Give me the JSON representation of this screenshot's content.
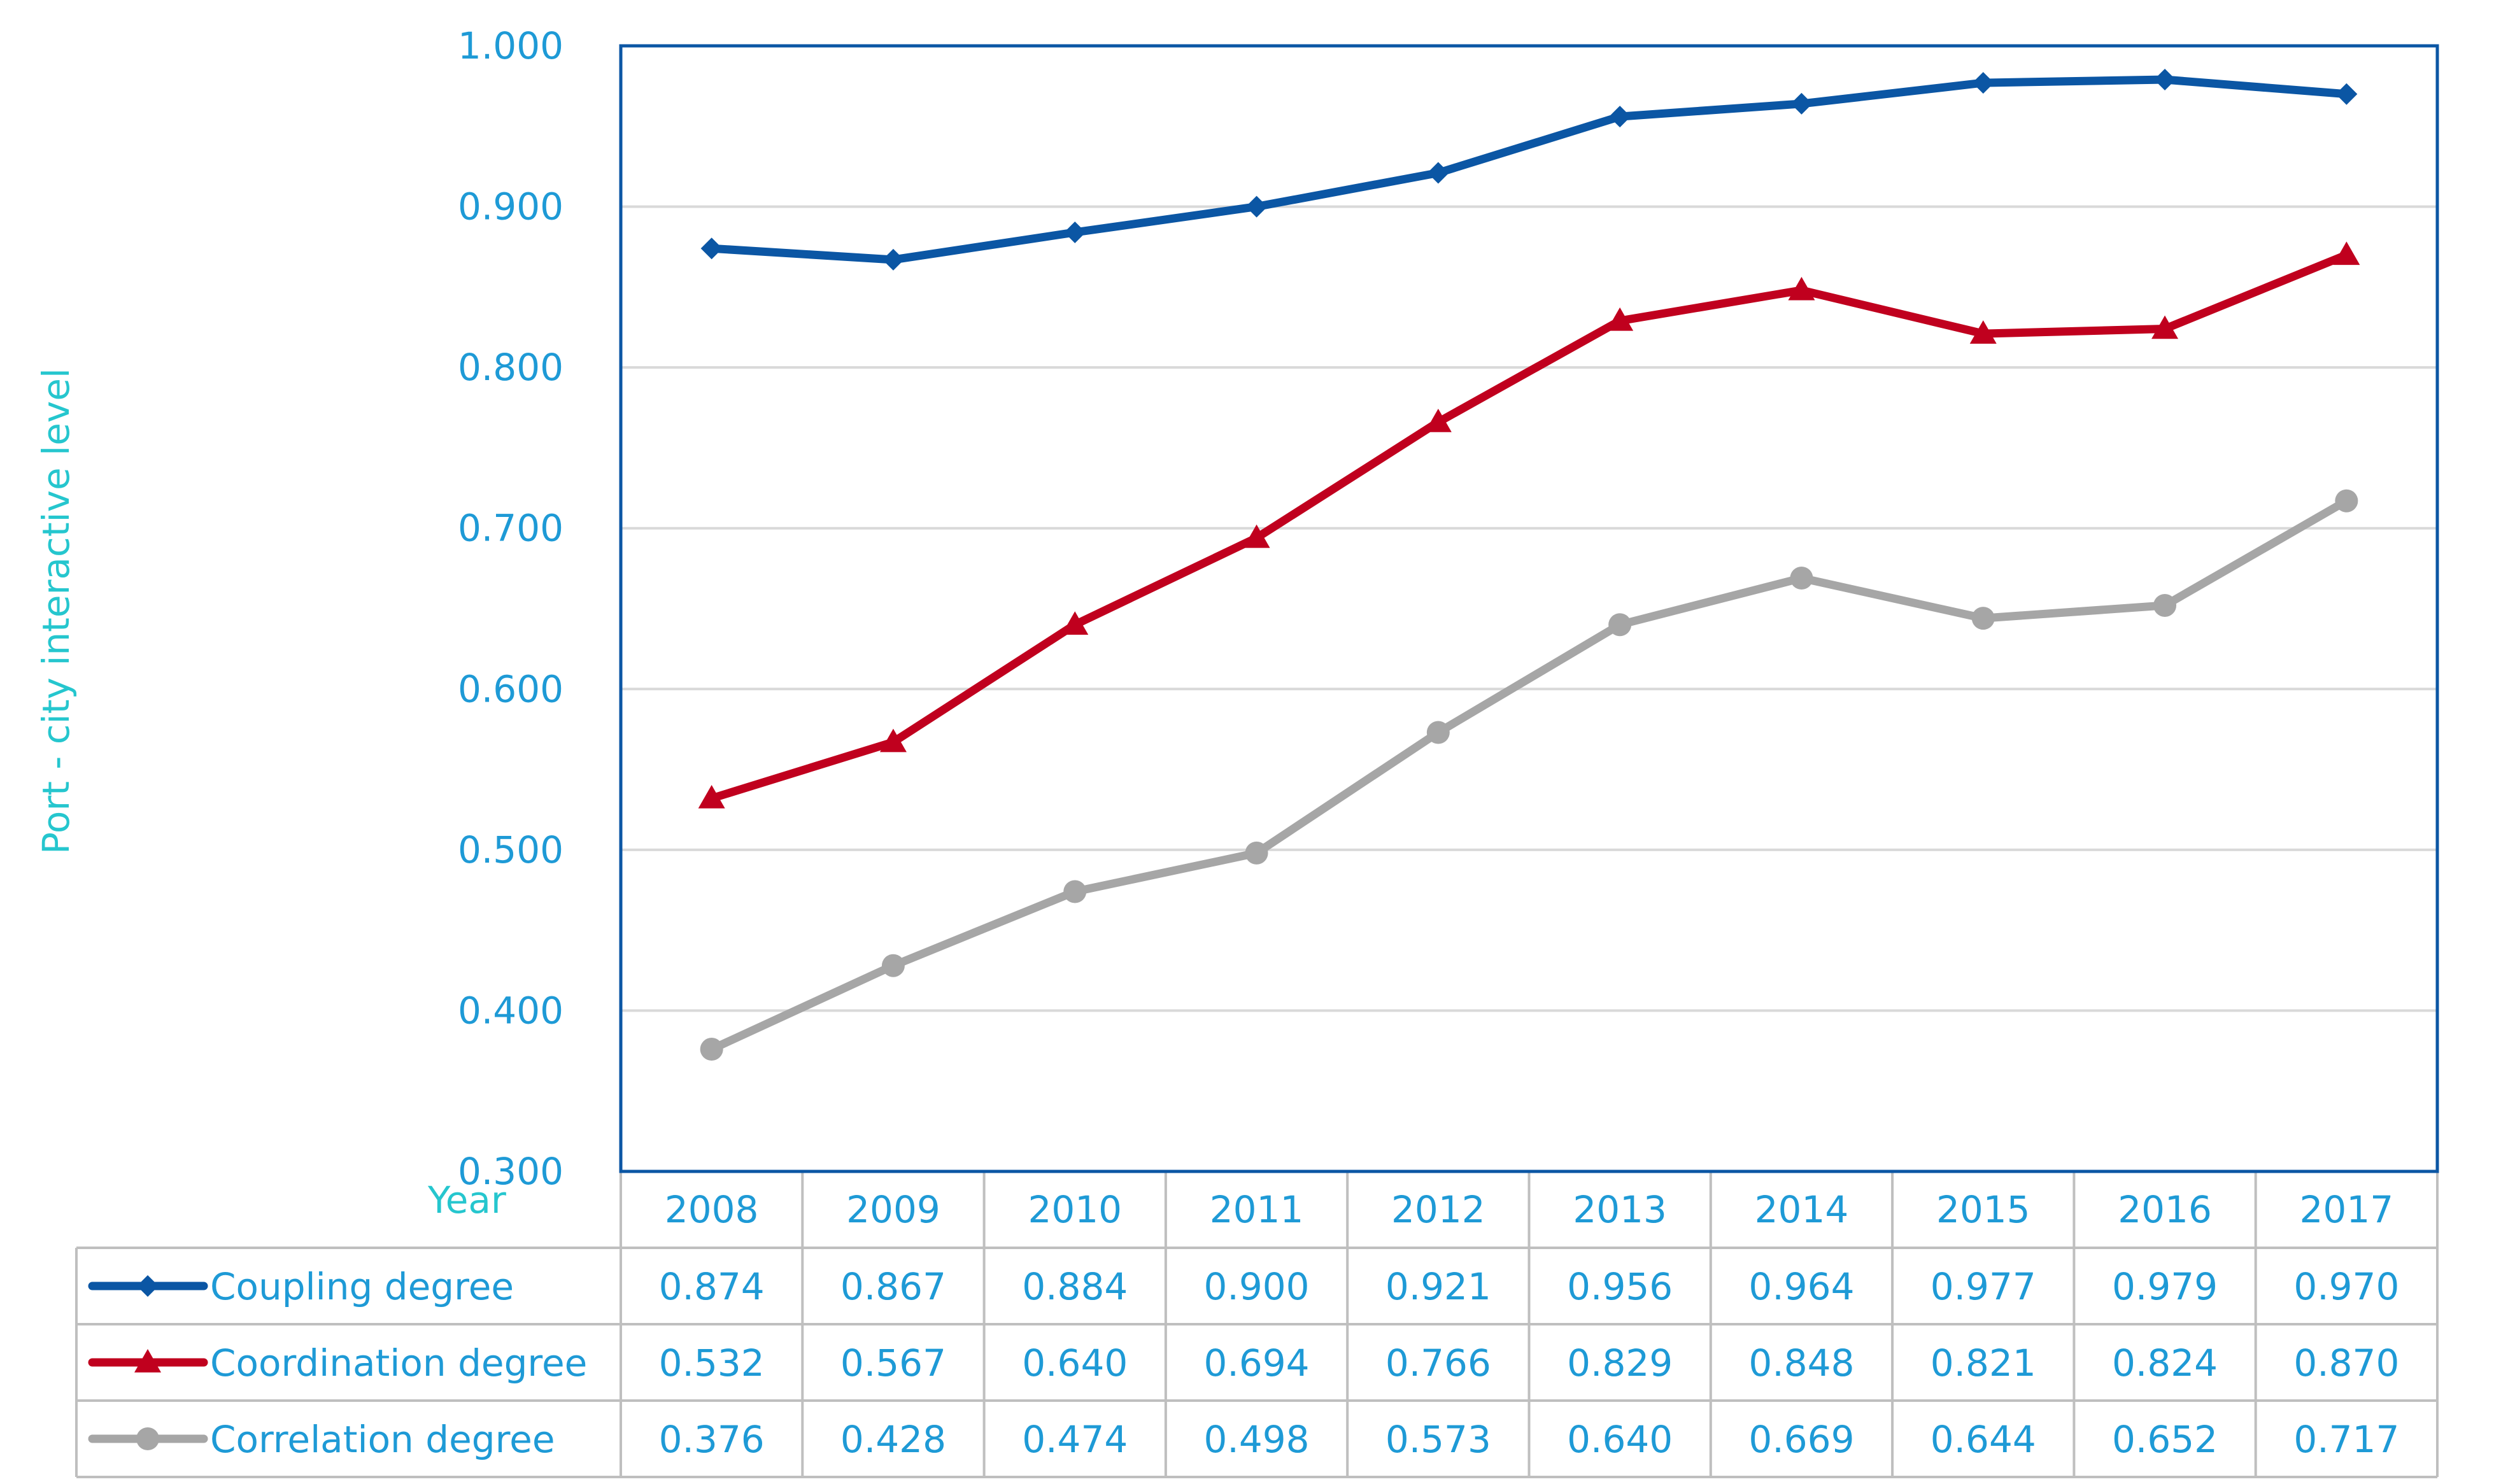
{
  "chart_data": {
    "type": "line",
    "title": "",
    "xlabel": "Year",
    "ylabel": "Port - city interactive level",
    "ylim": [
      0.3,
      1.0
    ],
    "ytick_values": [
      0.3,
      0.4,
      0.5,
      0.6,
      0.7,
      0.8,
      0.9,
      1.0
    ],
    "ytick_labels": [
      "0.300",
      "0.400",
      "0.500",
      "0.600",
      "0.700",
      "0.800",
      "0.900",
      "1.000"
    ],
    "grid": true,
    "legend": "data-table-below",
    "categories": [
      "2008",
      "2009",
      "2010",
      "2011",
      "2012",
      "2013",
      "2014",
      "2015",
      "2016",
      "2017"
    ],
    "series": [
      {
        "name": "Coupling degree",
        "color": "#0B56A4",
        "marker": "diamond",
        "values": [
          0.874,
          0.867,
          0.884,
          0.9,
          0.921,
          0.956,
          0.964,
          0.977,
          0.979,
          0.97
        ],
        "value_labels": [
          "0.874",
          "0.867",
          "0.884",
          "0.900",
          "0.921",
          "0.956",
          "0.964",
          "0.977",
          "0.979",
          "0.970"
        ]
      },
      {
        "name": "Coordination degree",
        "color": "#C0001E",
        "marker": "triangle",
        "values": [
          0.532,
          0.567,
          0.64,
          0.694,
          0.766,
          0.829,
          0.848,
          0.821,
          0.824,
          0.87
        ],
        "value_labels": [
          "0.532",
          "0.567",
          "0.640",
          "0.694",
          "0.766",
          "0.829",
          "0.848",
          "0.821",
          "0.824",
          "0.870"
        ]
      },
      {
        "name": "Correlation degree",
        "color": "#A6A6A6",
        "marker": "circle",
        "values": [
          0.376,
          0.428,
          0.474,
          0.498,
          0.573,
          0.64,
          0.669,
          0.644,
          0.652,
          0.717
        ],
        "value_labels": [
          "0.376",
          "0.428",
          "0.474",
          "0.498",
          "0.573",
          "0.640",
          "0.669",
          "0.644",
          "0.652",
          "0.717"
        ]
      }
    ]
  },
  "colors": {
    "tick_text": "#1E9AD6",
    "axis_title": "#25C6CE",
    "plot_border": "#0B56A4",
    "grid": "#D9D9D9",
    "table_border": "#BFBFBF"
  }
}
